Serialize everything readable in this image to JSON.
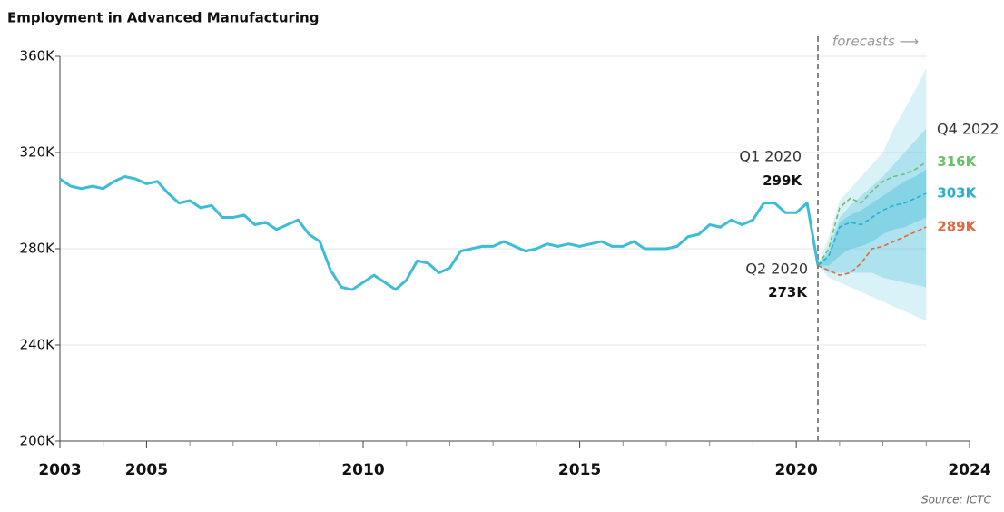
{
  "chart_data": {
    "type": "line",
    "title": "Employment in Advanced Manufacturing",
    "source": "Source: ICTC",
    "xlim": [
      2003,
      2024
    ],
    "ylim": [
      200,
      360
    ],
    "xticks": [
      2003,
      2005,
      2010,
      2015,
      2020,
      2024
    ],
    "xminorticks": [
      2004,
      2006,
      2007,
      2008,
      2009,
      2011,
      2012,
      2013,
      2014,
      2016,
      2017,
      2018,
      2019,
      2021,
      2022,
      2023
    ],
    "yticks": [
      {
        "value": 200,
        "label": "200K"
      },
      {
        "value": 240,
        "label": "240K"
      },
      {
        "value": 280,
        "label": "280K"
      },
      {
        "value": 320,
        "label": "320K"
      },
      {
        "value": 360,
        "label": "360K"
      }
    ],
    "grid": true,
    "x": [
      2003.0,
      2003.25,
      2003.5,
      2003.75,
      2004.0,
      2004.25,
      2004.5,
      2004.75,
      2005.0,
      2005.25,
      2005.5,
      2005.75,
      2006.0,
      2006.25,
      2006.5,
      2006.75,
      2007.0,
      2007.25,
      2007.5,
      2007.75,
      2008.0,
      2008.25,
      2008.5,
      2008.75,
      2009.0,
      2009.25,
      2009.5,
      2009.75,
      2010.0,
      2010.25,
      2010.5,
      2010.75,
      2011.0,
      2011.25,
      2011.5,
      2011.75,
      2012.0,
      2012.25,
      2012.5,
      2012.75,
      2013.0,
      2013.25,
      2013.5,
      2013.75,
      2014.0,
      2014.25,
      2014.5,
      2014.75,
      2015.0,
      2015.25,
      2015.5,
      2015.75,
      2016.0,
      2016.25,
      2016.5,
      2016.75,
      2017.0,
      2017.25,
      2017.5,
      2017.75,
      2018.0,
      2018.25,
      2018.5,
      2018.75,
      2019.0,
      2019.25,
      2019.5,
      2019.75,
      2020.0,
      2020.25,
      2020.5
    ],
    "series": [
      {
        "color": "#3dbcd8",
        "values": [
          309,
          306,
          305,
          306,
          305,
          308,
          310,
          309,
          307,
          308,
          303,
          299,
          300,
          297,
          298,
          293,
          293,
          294,
          290,
          291,
          288,
          290,
          292,
          286,
          283,
          271,
          264,
          263,
          266,
          269,
          266,
          263,
          267,
          275,
          274,
          270,
          272,
          279,
          280,
          281,
          281,
          283,
          281,
          279,
          280,
          282,
          281,
          282,
          281,
          282,
          283,
          281,
          281,
          283,
          280,
          280,
          280,
          281,
          285,
          286,
          290,
          289,
          292,
          290,
          292,
          299,
          299,
          295,
          295,
          299,
          273
        ],
        "value_labels": [
          null,
          null,
          null,
          null,
          null,
          null,
          null,
          null,
          null,
          null,
          null,
          null,
          null,
          null,
          null,
          null,
          null,
          null,
          null,
          null,
          null,
          null,
          null,
          null,
          null,
          null,
          null,
          null,
          null,
          null,
          null,
          null,
          null,
          null,
          null,
          null,
          null,
          null,
          null,
          null,
          null,
          null,
          null,
          null,
          null,
          null,
          null,
          null,
          null,
          null,
          null,
          null,
          null,
          null,
          null,
          null,
          null,
          null,
          null,
          null,
          null,
          null,
          null,
          null,
          null,
          null,
          null,
          null,
          null,
          "299K",
          "273K"
        ]
      }
    ],
    "forecast": {
      "label": "forecasts ⟶",
      "x": [
        2020.5,
        2020.75,
        2021.0,
        2021.25,
        2021.5,
        2021.75,
        2022.0,
        2022.25,
        2022.5,
        2022.75,
        2023.0
      ],
      "band_color": "#3dbcd8",
      "bands": [
        {
          "upper": [
            273,
            285,
            300,
            305,
            310,
            315,
            320,
            330,
            338,
            346,
            355
          ],
          "lower": [
            273,
            268,
            266,
            264,
            262,
            260,
            258,
            256,
            254,
            252,
            250
          ]
        },
        {
          "upper": [
            273,
            280,
            293,
            298,
            302,
            306,
            310,
            315,
            320,
            325,
            330
          ],
          "lower": [
            273,
            270,
            270,
            270,
            270,
            270,
            268,
            267,
            266,
            265,
            264
          ]
        },
        {
          "upper": [
            273,
            278,
            291,
            294,
            296,
            299,
            302,
            305,
            308,
            310,
            313
          ],
          "lower": [
            273,
            273,
            277,
            280,
            281,
            283,
            286,
            288,
            289,
            291,
            293
          ]
        }
      ],
      "series": [
        {
          "color": "#6cbf6c",
          "values": [
            273,
            280,
            297,
            301,
            299,
            304,
            308,
            310,
            311,
            313,
            316
          ],
          "value_labels": [
            null,
            null,
            null,
            null,
            null,
            null,
            null,
            null,
            null,
            null,
            "316K"
          ]
        },
        {
          "color": "#22b2cf",
          "values": [
            273,
            277,
            289,
            291,
            290,
            293,
            296,
            298,
            299,
            301,
            303
          ],
          "value_labels": [
            null,
            null,
            null,
            null,
            null,
            null,
            null,
            null,
            null,
            null,
            "303K"
          ]
        },
        {
          "color": "#e0683c",
          "values": [
            273,
            271,
            269,
            270,
            274,
            280,
            281,
            283,
            285,
            287,
            289
          ],
          "value_labels": [
            null,
            null,
            null,
            null,
            null,
            null,
            null,
            null,
            null,
            null,
            "289K"
          ]
        }
      ]
    },
    "annotations": [
      {
        "text": "Q1 2020"
      },
      {
        "text": "Q2 2020"
      },
      {
        "text": "Q4 2022"
      }
    ]
  }
}
